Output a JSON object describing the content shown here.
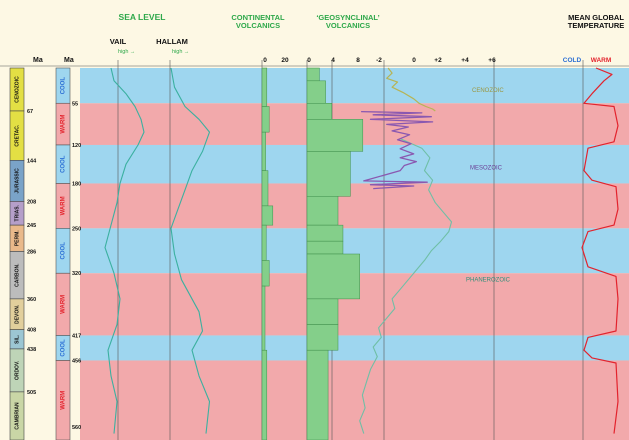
{
  "chart_data": {
    "type": "line",
    "headers": {
      "sea_level": "SEA LEVEL",
      "continental_volcanics": "CONTINENTAL VOLCANICS",
      "geosynclinal_volcanics": "GEOSYNCLINAL VOLCANICS",
      "mean_global_temperature": "MEAN GLOBAL TEMPERATURE",
      "vail": "VAIL",
      "hallam": "HALLAM",
      "high_vail": "high →",
      "high_hallam": "high →",
      "ma_left": "Ma",
      "ma_right": "Ma",
      "cold": "COLD",
      "warm": "WARM"
    },
    "isotope_ticks": [
      "-2",
      "0",
      "+2",
      "+4",
      "+6"
    ],
    "continental_ticks": [
      "0",
      "20"
    ],
    "geosynclinal_ticks": [
      "0",
      "4",
      "8"
    ],
    "ma_ticks": [
      {
        "label": "67",
        "ma": 67
      },
      {
        "label": "144",
        "ma": 144
      },
      {
        "label": "208",
        "ma": 208
      },
      {
        "label": "245",
        "ma": 245
      },
      {
        "label": "286",
        "ma": 286
      },
      {
        "label": "360",
        "ma": 360
      },
      {
        "label": "408",
        "ma": 408
      },
      {
        "label": "438",
        "ma": 438
      },
      {
        "label": "505",
        "ma": 505
      }
    ],
    "climate_ticks": [
      {
        "label": "55",
        "ma": 55
      },
      {
        "label": "120",
        "ma": 120
      },
      {
        "label": "180",
        "ma": 180
      },
      {
        "label": "250",
        "ma": 250
      },
      {
        "label": "320",
        "ma": 320
      },
      {
        "label": "417",
        "ma": 417
      },
      {
        "label": "456",
        "ma": 456
      },
      {
        "label": "560",
        "ma": 560
      }
    ],
    "periods": [
      {
        "label": "CENOZOIC",
        "top": 0,
        "bottom": 67,
        "color": "#e3df44"
      },
      {
        "label": "CRETAC.",
        "top": 67,
        "bottom": 144,
        "color": "#e3df44"
      },
      {
        "label": "JURASSIC",
        "top": 144,
        "bottom": 208,
        "color": "#7aa3c8"
      },
      {
        "label": "TRIAS.",
        "top": 208,
        "bottom": 245,
        "color": "#b59fc9"
      },
      {
        "label": "PERM.",
        "top": 245,
        "bottom": 286,
        "color": "#e9b98a"
      },
      {
        "label": "CARBON.",
        "top": 286,
        "bottom": 360,
        "color": "#bcbcbc"
      },
      {
        "label": "DEVON.",
        "top": 360,
        "bottom": 408,
        "color": "#e2cf9c"
      },
      {
        "label": "SIL.",
        "top": 408,
        "bottom": 438,
        "color": "#9cc6d3"
      },
      {
        "label": "ORDOV.",
        "top": 438,
        "bottom": 505,
        "color": "#bed4b7"
      },
      {
        "label": "CAMBRIAN",
        "top": 505,
        "bottom": 580,
        "color": "#c9d6a6"
      }
    ],
    "climate_bands": [
      {
        "label": "COOL",
        "top": 0,
        "bottom": 55,
        "color": "#9ed6ef"
      },
      {
        "label": "WARM",
        "top": 55,
        "bottom": 120,
        "color": "#f2a9ab"
      },
      {
        "label": "COOL",
        "top": 120,
        "bottom": 180,
        "color": "#9ed6ef"
      },
      {
        "label": "WARM",
        "top": 180,
        "bottom": 250,
        "color": "#f2a9ab"
      },
      {
        "label": "COOL",
        "top": 250,
        "bottom": 320,
        "color": "#9ed6ef"
      },
      {
        "label": "WARM",
        "top": 320,
        "bottom": 417,
        "color": "#f2a9ab"
      },
      {
        "label": "COOL",
        "top": 417,
        "bottom": 456,
        "color": "#9ed6ef"
      },
      {
        "label": "WARM",
        "top": 456,
        "bottom": 580,
        "color": "#f2a9ab"
      }
    ],
    "series": [
      {
        "name": "CENOZOIC",
        "color": "#b6b455",
        "points": [
          [
            0.3,
            0
          ],
          [
            0.6,
            8
          ],
          [
            0.2,
            16
          ],
          [
            1.0,
            22
          ],
          [
            0.6,
            30
          ],
          [
            1.4,
            38
          ],
          [
            2.2,
            48
          ],
          [
            2.6,
            55
          ],
          [
            3.1,
            60
          ],
          [
            3.6,
            64
          ],
          [
            3.8,
            67
          ]
        ]
      },
      {
        "name": "MESOZOIC",
        "color": "#8a58b0",
        "points": [
          [
            -1.7,
            68
          ],
          [
            2.8,
            70
          ],
          [
            -0.8,
            73
          ],
          [
            3.5,
            76
          ],
          [
            -1.0,
            80
          ],
          [
            3.6,
            84
          ],
          [
            0.2,
            88
          ],
          [
            1.8,
            92
          ],
          [
            0.6,
            98
          ],
          [
            1.9,
            104
          ],
          [
            1.0,
            112
          ],
          [
            2.0,
            118
          ],
          [
            1.2,
            126
          ],
          [
            2.2,
            134
          ],
          [
            1.2,
            140
          ],
          [
            2.4,
            146
          ],
          [
            1.5,
            152
          ],
          [
            1.2,
            160
          ],
          [
            -1.5,
            176
          ],
          [
            3.2,
            178
          ],
          [
            -1.0,
            182
          ],
          [
            2.2,
            184
          ],
          [
            -0.8,
            188
          ]
        ]
      },
      {
        "name": "PHANEROZOIC",
        "color": "#6fbfa6",
        "points": [
          [
            1.2,
            110
          ],
          [
            2.8,
            125
          ],
          [
            3.4,
            140
          ],
          [
            3.0,
            160
          ],
          [
            3.6,
            175
          ],
          [
            3.3,
            190
          ],
          [
            3.8,
            210
          ],
          [
            4.4,
            225
          ],
          [
            5.0,
            240
          ],
          [
            4.8,
            255
          ],
          [
            4.2,
            270
          ],
          [
            3.5,
            285
          ],
          [
            3.0,
            300
          ],
          [
            2.4,
            315
          ],
          [
            1.8,
            330
          ],
          [
            1.2,
            345
          ],
          [
            0.6,
            360
          ],
          [
            0.8,
            375
          ],
          [
            0.2,
            390
          ],
          [
            -0.4,
            405
          ],
          [
            -0.2,
            420
          ],
          [
            -0.8,
            435
          ],
          [
            -0.5,
            450
          ],
          [
            -1.0,
            470
          ],
          [
            -1.3,
            490
          ],
          [
            -1.6,
            510
          ],
          [
            -1.4,
            530
          ],
          [
            -1.8,
            550
          ],
          [
            -1.5,
            570
          ]
        ]
      },
      {
        "name": "Vail",
        "color": "#3bb0a0",
        "points": [
          [
            0.35,
            0
          ],
          [
            0.4,
            20
          ],
          [
            0.6,
            40
          ],
          [
            0.75,
            60
          ],
          [
            0.85,
            80
          ],
          [
            0.9,
            100
          ],
          [
            0.8,
            120
          ],
          [
            0.6,
            150
          ],
          [
            0.5,
            180
          ],
          [
            0.45,
            210
          ],
          [
            0.35,
            245
          ],
          [
            0.25,
            280
          ],
          [
            0.4,
            320
          ],
          [
            0.5,
            360
          ],
          [
            0.45,
            400
          ],
          [
            0.3,
            440
          ],
          [
            0.35,
            480
          ],
          [
            0.45,
            520
          ],
          [
            0.4,
            570
          ]
        ]
      },
      {
        "name": "Hallam",
        "color": "#3bb0a0",
        "points": [
          [
            0.3,
            0
          ],
          [
            0.35,
            30
          ],
          [
            0.5,
            60
          ],
          [
            0.7,
            80
          ],
          [
            0.85,
            100
          ],
          [
            0.75,
            130
          ],
          [
            0.6,
            160
          ],
          [
            0.5,
            190
          ],
          [
            0.4,
            220
          ],
          [
            0.3,
            250
          ],
          [
            0.35,
            290
          ],
          [
            0.45,
            330
          ],
          [
            0.7,
            380
          ],
          [
            0.75,
            410
          ],
          [
            0.6,
            440
          ],
          [
            0.7,
            480
          ],
          [
            0.85,
            520
          ],
          [
            0.8,
            570
          ]
        ]
      },
      {
        "name": "Mean global temperature",
        "color": "#e3232d",
        "points": [
          [
            0.4,
            0
          ],
          [
            0.8,
            10
          ],
          [
            0.6,
            20
          ],
          [
            0.3,
            40
          ],
          [
            0.1,
            55
          ],
          [
            0.85,
            60
          ],
          [
            0.95,
            90
          ],
          [
            0.85,
            115
          ],
          [
            0.2,
            125
          ],
          [
            0.1,
            160
          ],
          [
            0.3,
            175
          ],
          [
            0.9,
            185
          ],
          [
            0.95,
            220
          ],
          [
            0.85,
            245
          ],
          [
            0.2,
            255
          ],
          [
            0.05,
            280
          ],
          [
            0.2,
            310
          ],
          [
            0.9,
            325
          ],
          [
            0.95,
            360
          ],
          [
            0.9,
            410
          ],
          [
            0.2,
            420
          ],
          [
            0.1,
            440
          ],
          [
            0.3,
            452
          ],
          [
            0.9,
            460
          ],
          [
            0.95,
            520
          ],
          [
            0.85,
            570
          ]
        ]
      }
    ],
    "continental_volcanics": [
      {
        "top": 0,
        "bottom": 60,
        "value": 8
      },
      {
        "top": 60,
        "bottom": 100,
        "value": 12
      },
      {
        "top": 100,
        "bottom": 160,
        "value": 6
      },
      {
        "top": 160,
        "bottom": 215,
        "value": 10
      },
      {
        "top": 215,
        "bottom": 245,
        "value": 18
      },
      {
        "top": 245,
        "bottom": 300,
        "value": 7
      },
      {
        "top": 300,
        "bottom": 340,
        "value": 12
      },
      {
        "top": 340,
        "bottom": 440,
        "value": 5
      },
      {
        "top": 440,
        "bottom": 580,
        "value": 8
      }
    ],
    "geosynclinal_volcanics": [
      {
        "top": 0,
        "bottom": 20,
        "value": 2
      },
      {
        "top": 20,
        "bottom": 55,
        "value": 3
      },
      {
        "top": 55,
        "bottom": 80,
        "value": 4
      },
      {
        "top": 80,
        "bottom": 130,
        "value": 9
      },
      {
        "top": 130,
        "bottom": 200,
        "value": 7
      },
      {
        "top": 200,
        "bottom": 245,
        "value": 5
      },
      {
        "top": 245,
        "bottom": 270,
        "value": 5.8
      },
      {
        "top": 270,
        "bottom": 290,
        "value": 5.8
      },
      {
        "top": 290,
        "bottom": 360,
        "value": 8.5
      },
      {
        "top": 360,
        "bottom": 400,
        "value": 5
      },
      {
        "top": 400,
        "bottom": 440,
        "value": 5
      },
      {
        "top": 440,
        "bottom": 580,
        "value": 3.4
      }
    ],
    "series_labels": {
      "cenozoic": "CENOZOIC",
      "mesozoic": "MESOZOIC",
      "phanerozoic": "PHANEROZOIC"
    },
    "axis_ranges": {
      "time_ma": [
        0,
        580
      ],
      "isotope": [
        -3,
        7
      ],
      "geosynclinal": [
        0,
        10
      ],
      "continental": [
        0,
        30
      ]
    }
  },
  "colors": {
    "background": "#fdf8e4",
    "cool": "#9ed6ef",
    "warm": "#f2a9ab",
    "header_green": "#2ea84a",
    "volcanic_fill": "#84cf8a",
    "cold_text": "#2b6fd4",
    "warm_text": "#e3232d"
  }
}
